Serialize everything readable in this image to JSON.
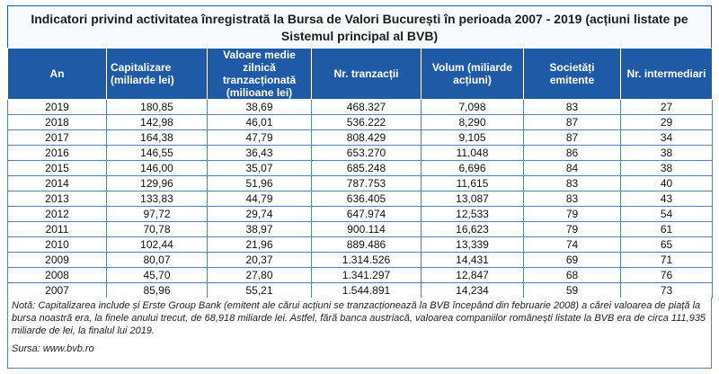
{
  "title": "Indicatori privind activitatea înregistrată la Bursa de Valori București în perioada 2007 - 2019 (acțiuni listate pe Sistemul principal al BVB)",
  "columns": [
    "An",
    "Capitalizare (miliarde lei)",
    "Valoare medie zilnică tranzacționată (milioane lei)",
    "Nr. tranzacții",
    "Volum (miliarde acțiuni)",
    "Societăți emitente",
    "Nr. intermediari"
  ],
  "rows": [
    [
      "2019",
      "180,85",
      "38,69",
      "468.327",
      "7,098",
      "83",
      "27"
    ],
    [
      "2018",
      "142,98",
      "46,01",
      "536.222",
      "8,290",
      "87",
      "29"
    ],
    [
      "2017",
      "164,38",
      "47,79",
      "808.429",
      "9,105",
      "87",
      "34"
    ],
    [
      "2016",
      "146,55",
      "36,43",
      "653.270",
      "11,048",
      "86",
      "38"
    ],
    [
      "2015",
      "146,00",
      "35,07",
      "685.248",
      "6,696",
      "84",
      "38"
    ],
    [
      "2014",
      "129,96",
      "51,96",
      "787.753",
      "11,615",
      "83",
      "40"
    ],
    [
      "2013",
      "133,83",
      "44,79",
      "636.405",
      "13,087",
      "83",
      "43"
    ],
    [
      "2012",
      "97,72",
      "29,74",
      "647.974",
      "12,533",
      "79",
      "54"
    ],
    [
      "2011",
      "70,78",
      "38,97",
      "900.114",
      "16,623",
      "79",
      "61"
    ],
    [
      "2010",
      "102,44",
      "21,96",
      "889.486",
      "13,339",
      "74",
      "65"
    ],
    [
      "2009",
      "80,07",
      "20,37",
      "1.314.526",
      "14,431",
      "69",
      "71"
    ],
    [
      "2008",
      "45,70",
      "27,80",
      "1.341.297",
      "12,847",
      "68",
      "76"
    ],
    [
      "2007",
      "85,96",
      "55,21",
      "1.544.891",
      "14,234",
      "59",
      "73"
    ]
  ],
  "note": "Notă: Capitalizarea include și Erste Group Bank (emitent ale cărui acțiuni se tranzacționează la BVB începând din februarie 2008) a cărei valoarea de piață la bursa noastră era, la finele anului trecut, de 68,918 miliarde lei. Astfel, fără banca austriacă, valoarea companiilor românești listate la BVB era de circa 111,935 miliarde de lei, la finalul lui 2019.",
  "source": "Sursa: www.bvb.ro",
  "colors": {
    "header_bg": "#1f5aa6",
    "border": "#5f7fb0"
  }
}
